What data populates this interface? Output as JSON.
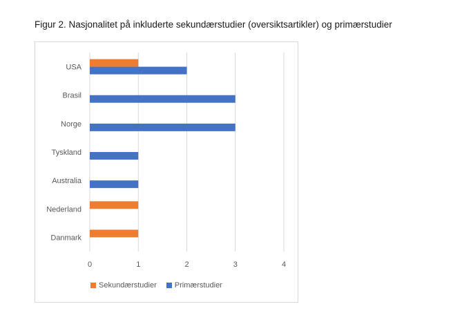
{
  "caption": "Figur 2. Nasjonalitet på inkluderte sekundærstudier (oversiktsartikler) og primærstudier",
  "chart_data": {
    "type": "bar",
    "orientation": "horizontal",
    "title": "",
    "categories": [
      "USA",
      "Brasil",
      "Norge",
      "Tyskland",
      "Australia",
      "Nederland",
      "Danmark"
    ],
    "series": [
      {
        "name": "Sekundærstudier",
        "color": "#ED7D31",
        "values": [
          1,
          0,
          0,
          0,
          0,
          1,
          1
        ]
      },
      {
        "name": "Primærstudier",
        "color": "#4472C4",
        "values": [
          2,
          3,
          3,
          1,
          1,
          0,
          0
        ]
      }
    ],
    "xlim": [
      0,
      4
    ],
    "xticks": [
      "0",
      "1",
      "2",
      "3",
      "4"
    ],
    "grid": true,
    "legend_position": "bottom"
  }
}
